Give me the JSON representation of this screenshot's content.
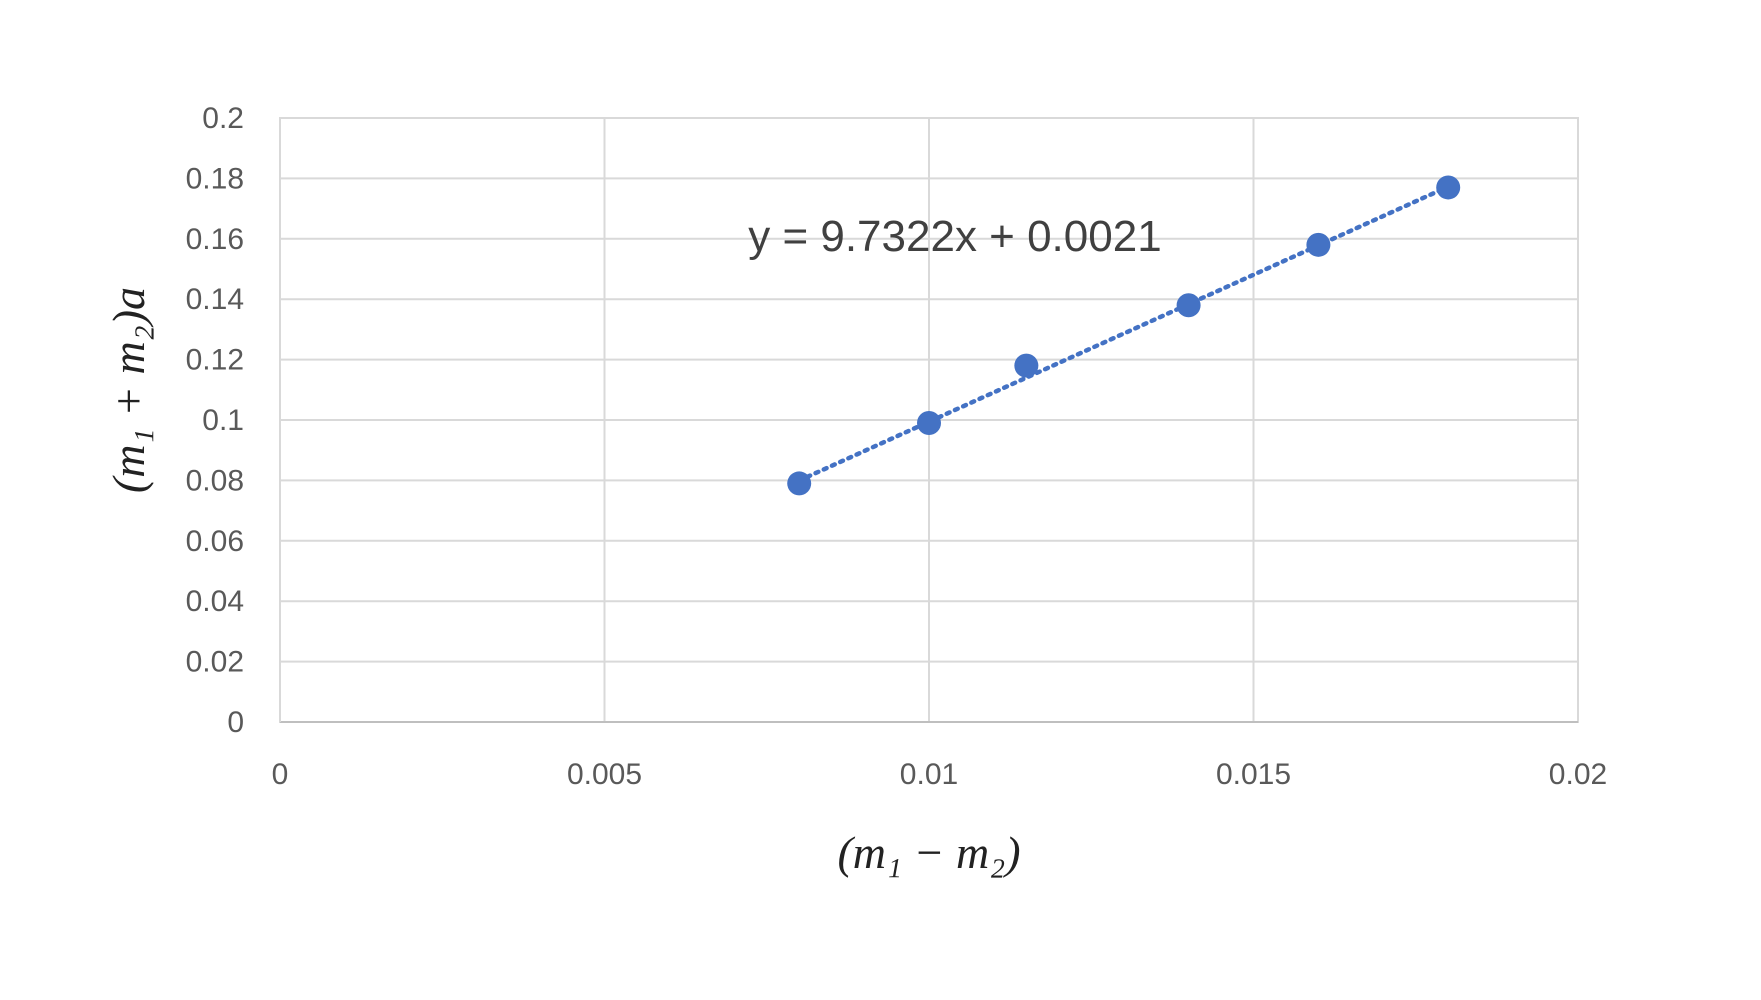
{
  "chart_data": {
    "type": "scatter",
    "title": "",
    "xlabel": "(m₁ − m₂)",
    "ylabel": "(m₁ + m₂)a",
    "xlim": [
      0,
      0.02
    ],
    "ylim": [
      0,
      0.2
    ],
    "x_ticks": [
      "0",
      "0.005",
      "0.01",
      "0.015",
      "0.02"
    ],
    "y_ticks": [
      "0",
      "0.02",
      "0.04",
      "0.06",
      "0.08",
      "0.1",
      "0.12",
      "0.14",
      "0.16",
      "0.18",
      "0.2"
    ],
    "grid": true,
    "legend": "none",
    "series": [
      {
        "color": "#4472c4",
        "points": [
          {
            "x": 0.008,
            "y": 0.079
          },
          {
            "x": 0.01,
            "y": 0.099
          },
          {
            "x": 0.0115,
            "y": 0.118
          },
          {
            "x": 0.014,
            "y": 0.138
          },
          {
            "x": 0.016,
            "y": 0.158
          },
          {
            "x": 0.018,
            "y": 0.177
          }
        ]
      }
    ],
    "trendline": {
      "type": "linear",
      "style": "dotted",
      "slope": 9.7322,
      "intercept": 0.0021,
      "x_range": [
        0.008,
        0.018
      ],
      "equation": "y = 9.7322x + 0.0021"
    }
  }
}
